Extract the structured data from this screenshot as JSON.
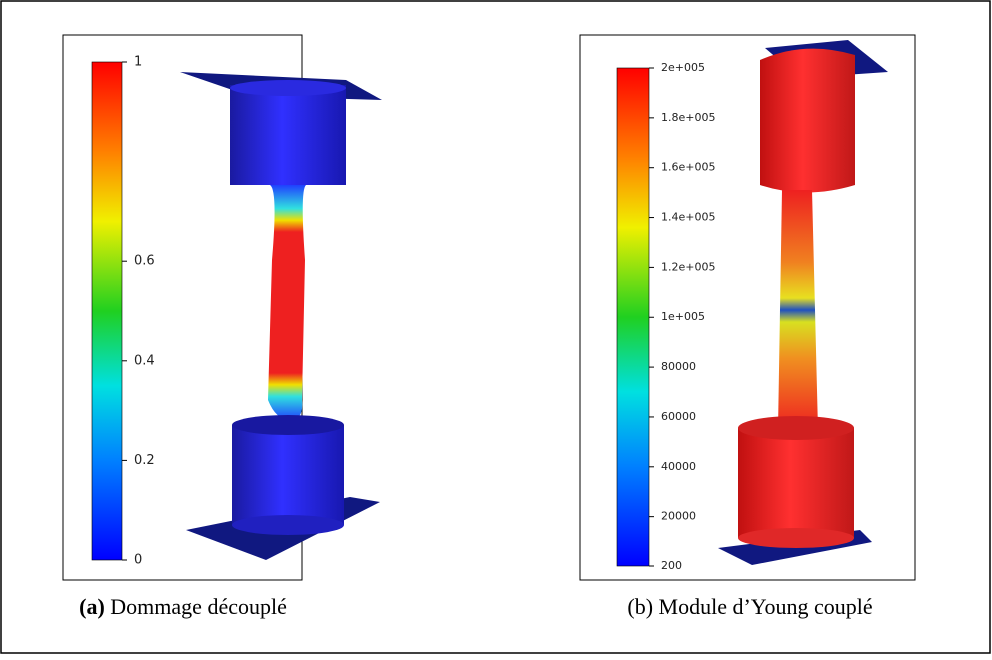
{
  "panels": [
    {
      "caption_label": "(a)",
      "caption_text": "Dommage découplé",
      "colorbar": {
        "range": [
          0,
          1
        ],
        "ticks": [
          1,
          0.6,
          0.4,
          0.2,
          0
        ]
      }
    },
    {
      "caption_label": "(b)",
      "caption_text": "Module d’Young couplé",
      "colorbar": {
        "range": [
          200,
          200000
        ],
        "ticks": [
          {
            "value": 200000,
            "label": "2e+005"
          },
          {
            "value": 180000,
            "label": "1.8e+005"
          },
          {
            "value": 160000,
            "label": "1.6e+005"
          },
          {
            "value": 140000,
            "label": "1.4e+005"
          },
          {
            "value": 120000,
            "label": "1.2e+005"
          },
          {
            "value": 100000,
            "label": "1e+005"
          },
          80000,
          60000,
          40000,
          20000,
          200
        ]
      }
    }
  ]
}
